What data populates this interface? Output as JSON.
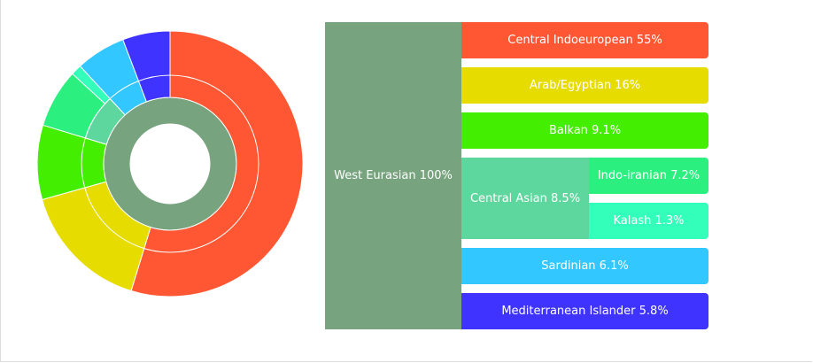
{
  "chart_data": {
    "type": "sunburst",
    "nodes": [
      {
        "label": "West Eurasian 100%",
        "value": 100,
        "color": "#77a47e",
        "children": [
          {
            "label": "Central Indoeuropean 55%",
            "value": 55,
            "color": "#ff5733"
          },
          {
            "label": "Arab/Egyptian 16%",
            "value": 16,
            "color": "#e6dc00"
          },
          {
            "label": "Balkan 9.1%",
            "value": 9.1,
            "color": "#44ee00"
          },
          {
            "label": "Central Asian 8.5%",
            "value": 8.5,
            "color": "#5ed79e",
            "children": [
              {
                "label": "Indo-iranian 7.2%",
                "value": 7.2,
                "color": "#2bf07f"
              },
              {
                "label": "Kalash 1.3%",
                "value": 1.3,
                "color": "#33ffbb"
              }
            ]
          },
          {
            "label": "Sardinian 6.1%",
            "value": 6.1,
            "color": "#33c7ff"
          },
          {
            "label": "Mediterranean Islander 5.8%",
            "value": 5.8,
            "color": "#3f33ff"
          }
        ]
      }
    ]
  }
}
